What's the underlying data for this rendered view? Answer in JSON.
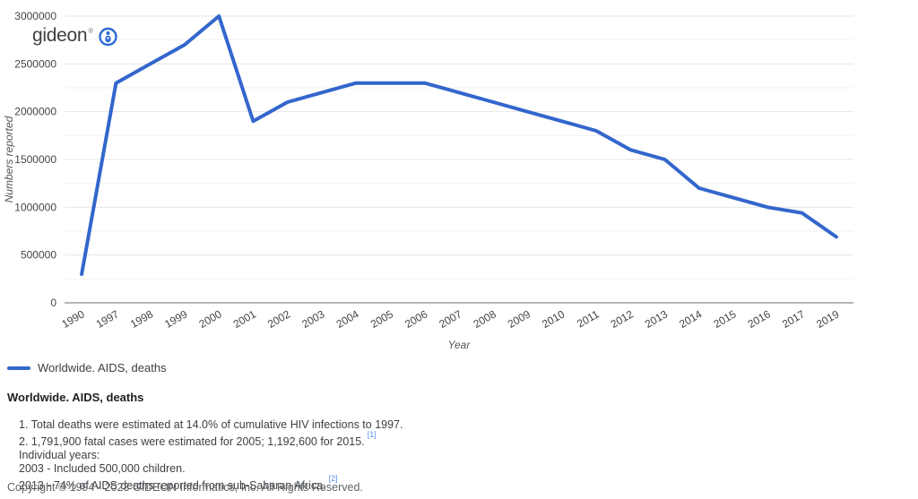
{
  "logo": {
    "text": "gideon",
    "mark": "®",
    "icon": "person-in-circle-icon"
  },
  "chart_data": {
    "type": "line",
    "title": "",
    "xlabel": "Year",
    "ylabel": "Numbers reported",
    "categories": [
      "1990",
      "1997",
      "1998",
      "1999",
      "2000",
      "2001",
      "2002",
      "2003",
      "2004",
      "2005",
      "2006",
      "2007",
      "2008",
      "2009",
      "2010",
      "2011",
      "2012",
      "2013",
      "2014",
      "2015",
      "2016",
      "2017",
      "2019"
    ],
    "series": [
      {
        "name": "Worldwide. AIDS, deaths",
        "values": [
          300000,
          2300000,
          2500000,
          2700000,
          3000000,
          1900000,
          2100000,
          2200000,
          2300000,
          2300000,
          2300000,
          2200000,
          2100000,
          2000000,
          1900000,
          1800000,
          1600000,
          1500000,
          1200000,
          1100000,
          1000000,
          940000,
          690000
        ]
      }
    ],
    "ylim": [
      0,
      3000000
    ],
    "ytick_step": 500000,
    "ytick_labels": [
      "0",
      "500000",
      "1000000",
      "1500000",
      "2000000",
      "2500000",
      "3000000"
    ],
    "grid": true,
    "grid_step": 250000,
    "x_label_rotation_deg": -30,
    "legend_position": "bottom-left"
  },
  "legend": {
    "label": "Worldwide. AIDS, deaths"
  },
  "heading": "Worldwide. AIDS, deaths",
  "notes": [
    {
      "text": "1. Total deaths were estimated at 14.0% of cumulative HIV infections to 1997.",
      "ref": ""
    },
    {
      "text": "2. 1,791,900 fatal cases were estimated for 2005; 1,192,600 for 2015.",
      "ref": "[1]"
    },
    {
      "text": "Individual years:",
      "ref": ""
    },
    {
      "text": "2003 - Included 500,000 children.",
      "ref": ""
    },
    {
      "text": "2013 - 74% of AIDS deaths reported from sub-Saharan Africa.",
      "ref": "[2]"
    }
  ],
  "copyright": "Copyright © 1994 - 2023 GIDEON Informatics, Inc. All Rights Reserved.",
  "colors": {
    "line": "#3366cc",
    "logo_icon": "#2f6bd8",
    "ref_link": "#5b8def",
    "axis_label": "#444444",
    "axis_title": "#555555",
    "grid_major": "#e6e6e6",
    "grid_minor": "#f2f2f2",
    "baseline": "#9e9e9e"
  }
}
